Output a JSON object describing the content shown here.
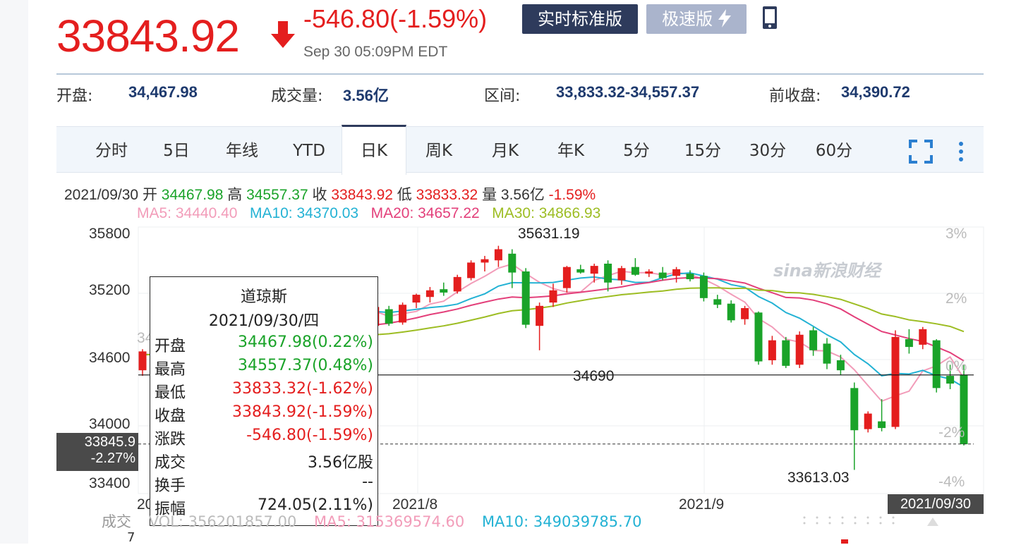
{
  "quote": {
    "price": "33843.92",
    "change": "-546.80(-1.59%)",
    "timestamp": "Sep 30 05:09PM EDT",
    "direction_icon": "arrow-down-icon",
    "buttons": {
      "standard": "实时标准版",
      "fast": "极速版"
    }
  },
  "stats": [
    {
      "label": "开盘:",
      "value": "34,467.98"
    },
    {
      "label": "成交量:",
      "value": "3.56亿"
    },
    {
      "label": "区间:",
      "value": "33,833.32-34,557.37"
    },
    {
      "label": "前收盘:",
      "value": "34,390.72"
    }
  ],
  "tabs": [
    "分时",
    "5日",
    "年线",
    "YTD",
    "日K",
    "周K",
    "月K",
    "年K",
    "5分",
    "15分",
    "30分",
    "60分"
  ],
  "active_tab": "日K",
  "info_line": {
    "date": "2021/09/30",
    "open_label": "开",
    "open": "34467.98",
    "high_label": "高",
    "high": "34557.37",
    "close_label": "收",
    "close": "33843.92",
    "low_label": "低",
    "low": "33833.32",
    "vol_label": "量",
    "vol": "3.56亿",
    "pct": "-1.59%"
  },
  "ma_line": {
    "ma5": "MA5: 34440.40",
    "ma10": "MA10: 34370.03",
    "ma20": "MA20: 34657.22",
    "ma30": "MA30: 34866.93"
  },
  "colors": {
    "up": "#e41e1e",
    "down": "#1aa329",
    "ma5": "#f29cb9",
    "ma10": "#23b2d4",
    "ma20": "#e33f7a",
    "ma30": "#9dbd23",
    "brand": "#2e3b5c"
  },
  "tooltip": {
    "title": "道琼斯",
    "date": "2021/09/30/四",
    "rows": [
      {
        "k": "开盘",
        "v": "34467.98(0.22%)",
        "c": "up"
      },
      {
        "k": "最高",
        "v": "34557.37(0.48%)",
        "c": "up"
      },
      {
        "k": "最低",
        "v": "33833.32(-1.62%)",
        "c": "down"
      },
      {
        "k": "收盘",
        "v": "33843.92(-1.59%)",
        "c": "down"
      },
      {
        "k": "涨跌",
        "v": "-546.80(-1.59%)",
        "c": "down"
      },
      {
        "k": "成交",
        "v": "3.56亿股",
        "c": "plain"
      },
      {
        "k": "换手",
        "v": "--",
        "c": "plain"
      },
      {
        "k": "振幅",
        "v": "724.05(2.11%)",
        "c": "plain"
      }
    ]
  },
  "axis": {
    "y_left": [
      "35800",
      "35200",
      "34600",
      "34000",
      "33400"
    ],
    "y_right": [
      "3%",
      "2%",
      "0%",
      "-2%",
      "-4%"
    ],
    "x": [
      "2021/7/1",
      "2021/8",
      "2021/9"
    ],
    "current_price": "33845.9",
    "current_pct": "-2.27%",
    "cursor_date": "2021/09/30"
  },
  "annotations": {
    "max": "35631.19",
    "mid": "34690",
    "min": "33613.03",
    "partial": "34780.03"
  },
  "volume_line": {
    "label": "成交",
    "vol": "VOL: 356201857.00",
    "ma5": "MA5: 315369574.60",
    "ma10": "MA10: 349039785.70",
    "axis_start": "7"
  },
  "watermark": "sina新浪财经",
  "chart_data": {
    "type": "candlestick",
    "title": "",
    "ylim": [
      33400,
      35800
    ],
    "x_range": [
      "2021/7/1",
      "2021/09/30"
    ],
    "last_candle": {
      "date": "2021/09/30",
      "open": 34467.98,
      "high": 34557.37,
      "low": 33833.32,
      "close": 33843.92
    },
    "period_high": 35631.19,
    "period_low": 33613.03,
    "ma": {
      "MA5": 34440.4,
      "MA10": 34370.03,
      "MA20": 34657.22,
      "MA30": 34866.93
    }
  }
}
